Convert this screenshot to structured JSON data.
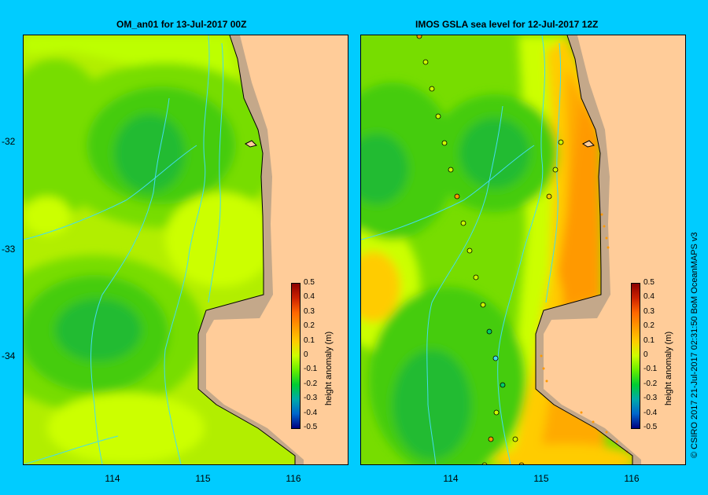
{
  "left_panel": {
    "title": "OM_an01  for 13-Jul-2017 00Z"
  },
  "right_panel": {
    "title": "IMOS GSLA sea level  for 12-Jul-2017 12Z"
  },
  "latitude_labels": [
    "-32",
    "-33",
    "-34"
  ],
  "longitude_labels": [
    "114",
    "115",
    "116"
  ],
  "colorbar": {
    "title": "height anomaly (m)",
    "ticks": [
      "0.5",
      "0.4",
      "0.3",
      "0.2",
      "0.1",
      "0",
      "-0.1",
      "-0.2",
      "-0.3",
      "-0.4",
      "-0.5"
    ],
    "colors": [
      "#8b0000",
      "#cc2200",
      "#ff6600",
      "#ff9900",
      "#ffcc00",
      "#ccff00",
      "#66ee00",
      "#00cc33",
      "#00aaaa",
      "#0066cc",
      "#000080"
    ]
  },
  "credit": "© CSIRO 2017   21-Jul-2017 02:31:50 BoM OceanMAPS v3"
}
